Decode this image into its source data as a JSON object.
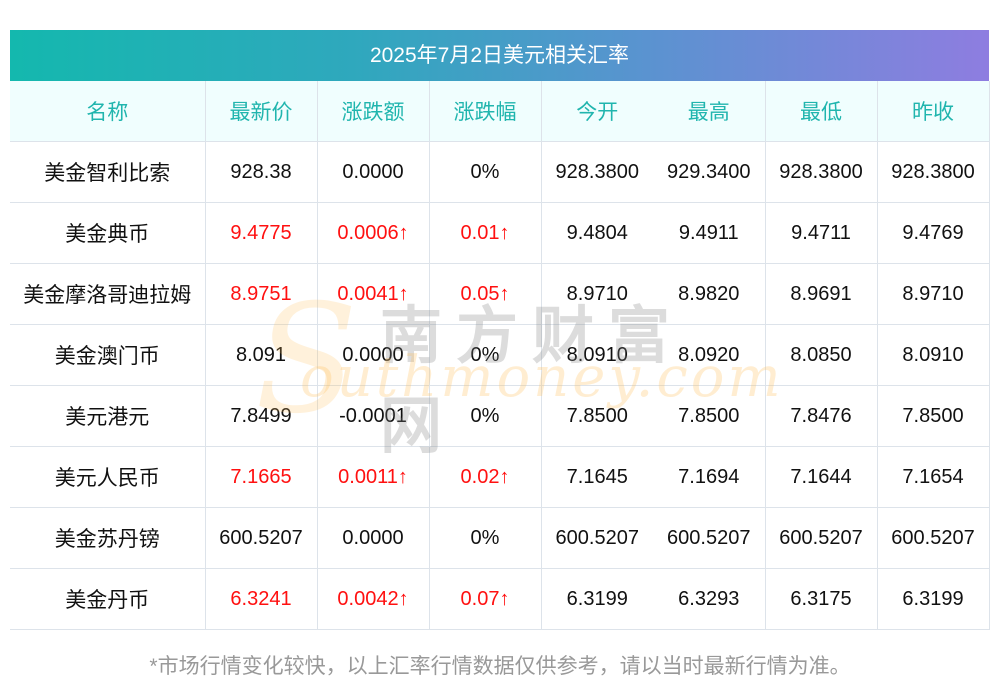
{
  "title": "2025年7月2日美元相关汇率",
  "columns": [
    "名称",
    "最新价",
    "涨跌额",
    "涨跌幅",
    "今开",
    "最高",
    "最低",
    "昨收"
  ],
  "rows": [
    {
      "name": "美金智利比索",
      "latest": "928.38",
      "change": "0.0000",
      "change_pct": "0%",
      "open": "928.3800",
      "high": "929.3400",
      "low": "928.3800",
      "prev_close": "928.3800",
      "direction": "flat"
    },
    {
      "name": "美金典币",
      "latest": "9.4775",
      "change": "0.0006↑",
      "change_pct": "0.01↑",
      "open": "9.4804",
      "high": "9.4911",
      "low": "9.4711",
      "prev_close": "9.4769",
      "direction": "up"
    },
    {
      "name": "美金摩洛哥迪拉姆",
      "latest": "8.9751",
      "change": "0.0041↑",
      "change_pct": "0.05↑",
      "open": "8.9710",
      "high": "8.9820",
      "low": "8.9691",
      "prev_close": "8.9710",
      "direction": "up"
    },
    {
      "name": "美金澳门币",
      "latest": "8.091",
      "change": "0.0000",
      "change_pct": "0%",
      "open": "8.0910",
      "high": "8.0920",
      "low": "8.0850",
      "prev_close": "8.0910",
      "direction": "flat"
    },
    {
      "name": "美元港元",
      "latest": "7.8499",
      "change": "-0.0001",
      "change_pct": "0%",
      "open": "7.8500",
      "high": "7.8500",
      "low": "7.8476",
      "prev_close": "7.8500",
      "direction": "flat"
    },
    {
      "name": "美元人民币",
      "latest": "7.1665",
      "change": "0.0011↑",
      "change_pct": "0.02↑",
      "open": "7.1645",
      "high": "7.1694",
      "low": "7.1644",
      "prev_close": "7.1654",
      "direction": "up"
    },
    {
      "name": "美金苏丹镑",
      "latest": "600.5207",
      "change": "0.0000",
      "change_pct": "0%",
      "open": "600.5207",
      "high": "600.5207",
      "low": "600.5207",
      "prev_close": "600.5207",
      "direction": "flat"
    },
    {
      "name": "美金丹币",
      "latest": "6.3241",
      "change": "0.0042↑",
      "change_pct": "0.07↑",
      "open": "6.3199",
      "high": "6.3293",
      "low": "6.3175",
      "prev_close": "6.3199",
      "direction": "up"
    }
  ],
  "footnote": "*市场行情变化较快，以上汇率行情数据仅供参考，请以当时最新行情为准。",
  "watermark": {
    "logo_letter": "S",
    "cn": "南方财富网",
    "en": "outhmoney.com"
  },
  "colors": {
    "up": "#ff1010",
    "header_text": "#20b5ae",
    "header_bg": "#f0fefe",
    "title_gradient_start": "#14b8ae",
    "title_gradient_end": "#8e7de0"
  }
}
